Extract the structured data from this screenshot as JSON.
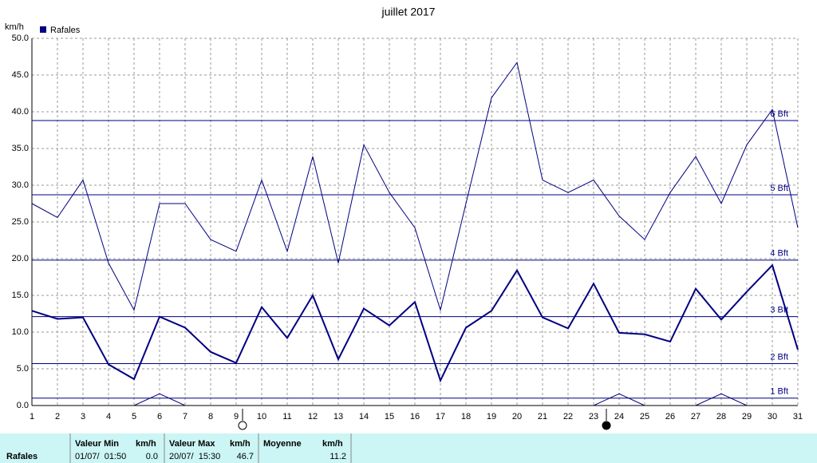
{
  "chart_data": {
    "type": "line",
    "title": "juillet 2017",
    "y_label": "km/h",
    "categories": [
      "1",
      "2",
      "3",
      "4",
      "5",
      "6",
      "7",
      "8",
      "9",
      "10",
      "11",
      "12",
      "13",
      "14",
      "15",
      "16",
      "17",
      "18",
      "19",
      "20",
      "21",
      "22",
      "23",
      "24",
      "25",
      "26",
      "27",
      "28",
      "29",
      "30",
      "31"
    ],
    "series": [
      {
        "name": "Rafales",
        "color": "#000080",
        "values": [
          12.9,
          11.8,
          12.0,
          5.6,
          3.6,
          12.1,
          10.6,
          7.3,
          5.8,
          13.4,
          9.2,
          15.0,
          6.3,
          13.2,
          10.9,
          14.1,
          3.4,
          10.6,
          12.9,
          18.4,
          12.0,
          10.5,
          16.6,
          9.9,
          9.7,
          8.7,
          15.9,
          11.7,
          15.5,
          19.1,
          7.6
        ]
      },
      {
        "color": "#000080",
        "values": [
          27.5,
          25.6,
          30.7,
          19.4,
          13.0,
          27.5,
          27.5,
          22.6,
          21.0,
          30.7,
          21.0,
          33.9,
          19.4,
          35.5,
          29.0,
          24.2,
          13.0,
          27.5,
          41.9,
          46.7,
          30.7,
          29.0,
          30.7,
          25.8,
          22.6,
          29.0,
          33.9,
          27.5,
          35.5,
          40.3,
          24.2
        ]
      },
      {
        "color": "#000080",
        "values": [
          0,
          0,
          0,
          0,
          0,
          1.6,
          0,
          0,
          0,
          0,
          0,
          0,
          0,
          0,
          0,
          0,
          0,
          0,
          0,
          0,
          0,
          0,
          0,
          1.6,
          0,
          0,
          0,
          1.6,
          0,
          0,
          0
        ]
      }
    ],
    "ylim": [
      0,
      50
    ],
    "yticks": [
      {
        "value": 0,
        "label": "0.0"
      },
      {
        "value": 5,
        "label": "5.0"
      },
      {
        "value": 10,
        "label": "10.0"
      },
      {
        "value": 15,
        "label": "15.0"
      },
      {
        "value": 20,
        "label": "20.0"
      },
      {
        "value": 25,
        "label": "25.0"
      },
      {
        "value": 30,
        "label": "30.0"
      },
      {
        "value": 35,
        "label": "35.0"
      },
      {
        "value": 40,
        "label": "40.0"
      },
      {
        "value": 45,
        "label": "45.0"
      },
      {
        "value": 50,
        "label": "50.0"
      }
    ],
    "grid": true,
    "reference_lines": [
      {
        "value": 1,
        "label": "1 Bft"
      },
      {
        "value": 5.7,
        "label": "2 Bft"
      },
      {
        "value": 12.1,
        "label": "3 Bft"
      },
      {
        "value": 19.8,
        "label": "4 Bft"
      },
      {
        "value": 28.7,
        "label": "5 Bft"
      },
      {
        "value": 38.8,
        "label": "6 Bft"
      }
    ]
  },
  "stats": {
    "row_label": "Rafales",
    "headers": [
      "Valeur Min",
      "km/h",
      "Valeur Max",
      "km/h",
      "Moyenne",
      "km/h"
    ],
    "values": [
      "01/07/  01:50",
      "0.0",
      "20/07/  15:30",
      "46.7",
      "11.2"
    ]
  }
}
